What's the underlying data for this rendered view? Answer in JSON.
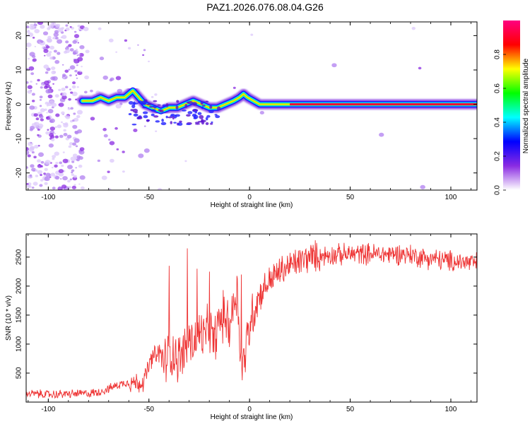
{
  "title": "PAZ1.2026.076.08.04.G26",
  "chart_data": [
    {
      "type": "heatmap",
      "title": "PAZ1.2026.076.08.04.G26",
      "xlabel": "Height of straight line (km)",
      "ylabel": "Frequency (Hz)",
      "xlim": [
        -111,
        113
      ],
      "ylim": [
        -25,
        24
      ],
      "xticks": [
        -100,
        -50,
        0,
        50,
        100
      ],
      "xtick_labels": [
        "-100",
        "-50",
        "0",
        "50",
        "100"
      ],
      "yticks": [
        -20,
        -10,
        0,
        10,
        20
      ],
      "ytick_labels": [
        "-20",
        "-10",
        "0",
        "10",
        "20"
      ],
      "ridge": {
        "x": [
          -83,
          -78,
          -74,
          -70,
          -66,
          -62,
          -58,
          -55,
          -52,
          -48,
          -44,
          -40,
          -36,
          -32,
          -28,
          -24,
          -20,
          -16,
          -12,
          -8,
          -5,
          -3,
          -1,
          2,
          5,
          10,
          20,
          113
        ],
        "y": [
          1,
          1,
          2,
          1,
          2,
          2,
          4,
          2,
          0,
          -1,
          -2,
          -1,
          -1,
          0,
          1,
          0,
          -1,
          -1,
          0,
          1,
          2,
          3,
          2,
          1,
          0,
          0,
          0,
          0
        ]
      },
      "colorbar": {
        "label": "Normalized spectral amplitude",
        "ticks": [
          0.0,
          0.2,
          0.4,
          0.6,
          0.8
        ],
        "tick_labels": [
          "0.0",
          "0.2",
          "0.4",
          "0.6",
          "0.8"
        ],
        "range": [
          0,
          1
        ],
        "colors": [
          "#ffffff",
          "#8a2be2",
          "#0000ff",
          "#00ffff",
          "#00ff00",
          "#ffff00",
          "#ff0000",
          "#ff0080"
        ]
      }
    },
    {
      "type": "line",
      "xlabel": "Height of straight line (km)",
      "ylabel": "SNR (10 * v/v)",
      "xlim": [
        -111,
        113
      ],
      "ylim": [
        0,
        2900
      ],
      "xticks": [
        -100,
        -50,
        0,
        50,
        100
      ],
      "xtick_labels": [
        "-100",
        "-50",
        "0",
        "50",
        "100"
      ],
      "yticks": [
        500,
        1000,
        1500,
        2000,
        2500
      ],
      "ytick_labels": [
        "500",
        "1000",
        "1500",
        "2000",
        "2500"
      ],
      "color": "#ee3333",
      "series": [
        {
          "name": "SNR",
          "x": [
            -111,
            -100,
            -90,
            -80,
            -75,
            -70,
            -65,
            -60,
            -55,
            -52,
            -50,
            -48,
            -45,
            -42,
            -40,
            -38,
            -35,
            -32,
            -30,
            -28,
            -25,
            -22,
            -20,
            -18,
            -15,
            -12,
            -10,
            -8,
            -6,
            -4,
            -2,
            0,
            2,
            5,
            10,
            15,
            20,
            25,
            30,
            35,
            40,
            45,
            50,
            55,
            60,
            65,
            70,
            75,
            80,
            85,
            90,
            95,
            100,
            105,
            110,
            113
          ],
          "y": [
            150,
            130,
            140,
            150,
            170,
            230,
            300,
            350,
            320,
            400,
            620,
            780,
            820,
            700,
            900,
            850,
            750,
            900,
            1100,
            1000,
            1200,
            1100,
            1300,
            1000,
            1400,
            1500,
            1300,
            1700,
            1900,
            500,
            900,
            1300,
            1600,
            1850,
            2100,
            2250,
            2350,
            2430,
            2500,
            2520,
            2540,
            2540,
            2550,
            2560,
            2560,
            2550,
            2550,
            2560,
            2540,
            2500,
            2480,
            2450,
            2430,
            2420,
            2400,
            2400
          ]
        }
      ],
      "spikes": [
        {
          "x": -40,
          "y": 2350
        },
        {
          "x": -31,
          "y": 2650
        },
        {
          "x": -26,
          "y": 2300
        },
        {
          "x": -20,
          "y": 2250
        },
        {
          "x": -4,
          "y": 2200
        }
      ]
    }
  ]
}
